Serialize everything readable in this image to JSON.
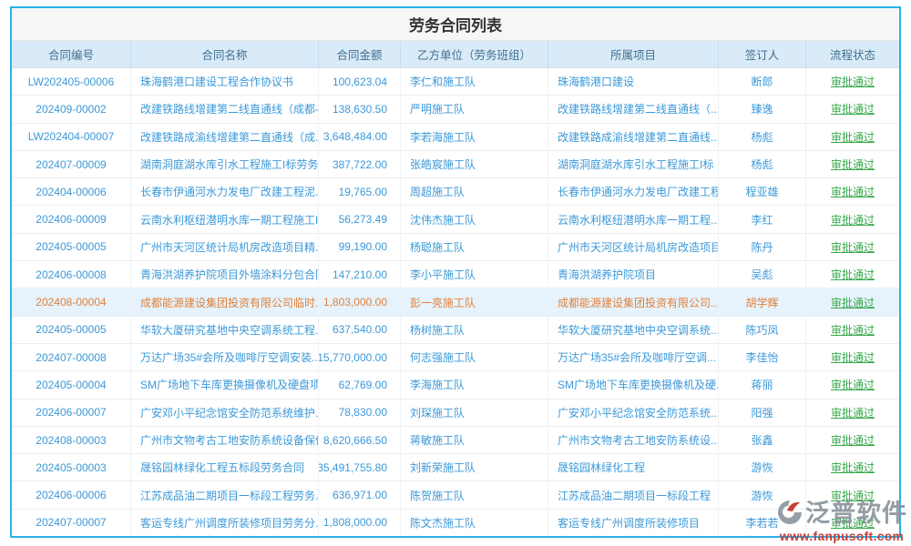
{
  "page": {
    "title": "劳务合同列表"
  },
  "colors": {
    "panel_border": "#2ab2e8",
    "header_bg": "#d9eaf8",
    "header_text": "#40708f",
    "link_blue": "#3b99d9",
    "status_green": "#37a94c",
    "highlight_bg": "#e6f3fc",
    "highlight_text": "#e0813c"
  },
  "watermark": {
    "brand": "泛普软件",
    "url": "www.fanpusoft.com",
    "logo_icon": "fanpu-logo"
  },
  "table": {
    "columns": [
      {
        "key": "no",
        "label": "合同编号",
        "align": "center",
        "link": true
      },
      {
        "key": "name",
        "label": "合同名称",
        "align": "left",
        "link": true
      },
      {
        "key": "amount",
        "label": "合同金额",
        "align": "right",
        "link": false
      },
      {
        "key": "unit",
        "label": "乙方单位（劳务班组）",
        "align": "left",
        "link": false
      },
      {
        "key": "project",
        "label": "所属项目",
        "align": "left",
        "link": true
      },
      {
        "key": "signer",
        "label": "签订人",
        "align": "center",
        "link": false
      },
      {
        "key": "status",
        "label": "流程状态",
        "align": "center",
        "link": true
      }
    ],
    "rows": [
      {
        "no": "LW202405-00006",
        "name": "珠海鹤港口建设工程合作协议书",
        "amount": "100,623.04",
        "unit": "李仁和施工队",
        "project": "珠海鹤港口建设",
        "signer": "断郎",
        "status": "审批通过",
        "highlighted": false
      },
      {
        "no": "202409-00002",
        "name": "改建铁路线增建第二线直通线（成都-...",
        "amount": "138,630.50",
        "unit": "严明施工队",
        "project": "改建铁路线增建第二线直通线（...",
        "signer": "臻逸",
        "status": "审批通过",
        "highlighted": false
      },
      {
        "no": "LW202404-00007",
        "name": "改建铁路成渝线增建第二直通线（成...",
        "amount": "3,648,484.00",
        "unit": "李若海施工队",
        "project": "改建铁路成渝线增建第二直通线...",
        "signer": "杨彪",
        "status": "审批通过",
        "highlighted": false
      },
      {
        "no": "202407-00009",
        "name": "湖南洞庭湖水库引水工程施工I标劳务...",
        "amount": "387,722.00",
        "unit": "张皓宸施工队",
        "project": "湖南洞庭湖水库引水工程施工I标",
        "signer": "杨彪",
        "status": "审批通过",
        "highlighted": false
      },
      {
        "no": "202404-00006",
        "name": "长春市伊通河水力发电厂改建工程泥...",
        "amount": "19,765.00",
        "unit": "周超施工队",
        "project": "长春市伊通河水力发电厂改建工程",
        "signer": "程亚雄",
        "status": "审批通过",
        "highlighted": false
      },
      {
        "no": "202406-00009",
        "name": "云南水利枢纽潜明水库一期工程施工I...",
        "amount": "56,273.49",
        "unit": "沈伟杰施工队",
        "project": "云南水利枢纽潜明水库一期工程...",
        "signer": "李红",
        "status": "审批通过",
        "highlighted": false
      },
      {
        "no": "202405-00005",
        "name": "广州市天河区统计局机房改造项目精...",
        "amount": "99,190.00",
        "unit": "杨聪施工队",
        "project": "广州市天河区统计局机房改造项目",
        "signer": "陈丹",
        "status": "审批通过",
        "highlighted": false
      },
      {
        "no": "202406-00008",
        "name": "青海洪湖养护院项目外墙涂料分包合同",
        "amount": "147,210.00",
        "unit": "李小平施工队",
        "project": "青海洪湖养护院项目",
        "signer": "吴彪",
        "status": "审批通过",
        "highlighted": false
      },
      {
        "no": "202408-00004",
        "name": "成都能源建设集团投资有限公司临时...",
        "amount": "1,803,000.00",
        "unit": "彭一亮施工队",
        "project": "成都能源建设集团投资有限公司...",
        "signer": "胡学辉",
        "status": "审批通过",
        "highlighted": true
      },
      {
        "no": "202405-00005",
        "name": "华软大厦研究基地中央空调系统工程...",
        "amount": "637,540.00",
        "unit": "杨树施工队",
        "project": "华软大厦研究基地中央空调系统...",
        "signer": "陈巧凤",
        "status": "审批通过",
        "highlighted": false
      },
      {
        "no": "202407-00008",
        "name": "万达广场35#会所及咖啡厅空调安装...",
        "amount": "15,770,000.00",
        "unit": "何志强施工队",
        "project": "万达广场35#会所及咖啡厅空调...",
        "signer": "李佳怡",
        "status": "审批通过",
        "highlighted": false
      },
      {
        "no": "202405-00004",
        "name": "SM广场地下车库更换摄像机及硬盘项...",
        "amount": "62,769.00",
        "unit": "李海施工队",
        "project": "SM广场地下车库更换摄像机及硬...",
        "signer": "蒋丽",
        "status": "审批通过",
        "highlighted": false
      },
      {
        "no": "202406-00007",
        "name": "广安邓小平纪念馆安全防范系统维护...",
        "amount": "78,830.00",
        "unit": "刘琛施工队",
        "project": "广安邓小平纪念馆安全防范系统...",
        "signer": "阳强",
        "status": "审批通过",
        "highlighted": false
      },
      {
        "no": "202408-00003",
        "name": "广州市文物考古工地安防系统设备保修",
        "amount": "8,620,666.50",
        "unit": "蒋敏施工队",
        "project": "广州市文物考古工地安防系统设...",
        "signer": "张鑫",
        "status": "审批通过",
        "highlighted": false
      },
      {
        "no": "202405-00003",
        "name": "晟铭园林绿化工程五标段劳务合同",
        "amount": "35,491,755.80",
        "unit": "刘新荣施工队",
        "project": "晟铭园林绿化工程",
        "signer": "游恢",
        "status": "审批通过",
        "highlighted": false
      },
      {
        "no": "202406-00006",
        "name": "江苏成品油二期项目一标段工程劳务...",
        "amount": "636,971.00",
        "unit": "陈贺施工队",
        "project": "江苏成品油二期项目一标段工程",
        "signer": "游恢",
        "status": "审批通过",
        "highlighted": false
      },
      {
        "no": "202407-00007",
        "name": "客运专线广州调度所装修项目劳务分...",
        "amount": "1,808,000.00",
        "unit": "陈文杰施工队",
        "project": "客运专线广州调度所装修项目",
        "signer": "李若若",
        "status": "审批通过",
        "highlighted": false
      }
    ]
  }
}
